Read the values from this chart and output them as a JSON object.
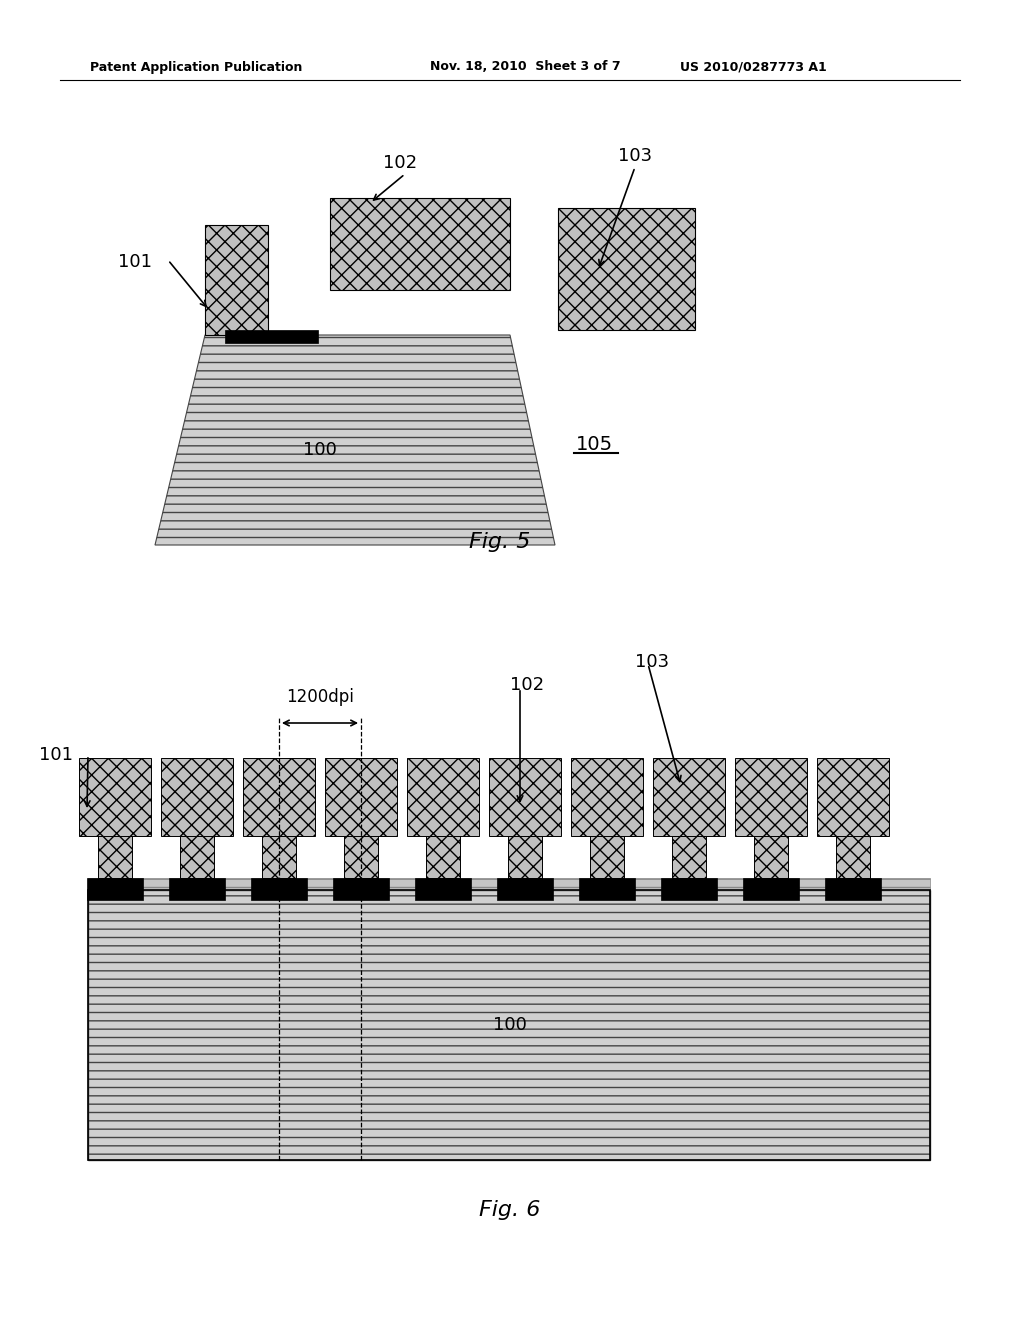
{
  "bg_color": "#ffffff",
  "header_left": "Patent Application Publication",
  "header_mid": "Nov. 18, 2010  Sheet 3 of 7",
  "header_right": "US 2010/0287773 A1",
  "fig5_label": "Fig. 5",
  "fig6_label": "Fig. 6",
  "label_101": "101",
  "label_102": "102",
  "label_103": "103",
  "label_100_fig5": "100",
  "label_100_fig6": "100",
  "label_105": "105",
  "label_1200dpi": "1200dpi",
  "cross_fc": "#b8b8b8",
  "cross_ec": "#000000",
  "sub_fc": "#d0d0d0",
  "sub_ec": "#555555",
  "black": "#000000",
  "white": "#ffffff"
}
